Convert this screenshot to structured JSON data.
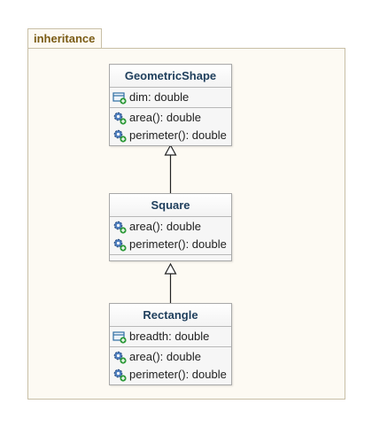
{
  "package": {
    "name": "inheritance"
  },
  "classes": {
    "geometric_shape": {
      "name": "GeometricShape",
      "attributes": [
        "dim: double"
      ],
      "operations": [
        "area(): double",
        "perimeter(): double"
      ]
    },
    "square": {
      "name": "Square",
      "attributes": [],
      "operations": [
        "area(): double",
        "perimeter(): double"
      ]
    },
    "rectangle": {
      "name": "Rectangle",
      "attributes": [
        "breadth: double"
      ],
      "operations": [
        "area(): double",
        "perimeter(): double"
      ]
    }
  },
  "relations": [
    {
      "type": "generalization",
      "from": "Square",
      "to": "GeometricShape"
    },
    {
      "type": "generalization",
      "from": "Rectangle",
      "to": "Square"
    }
  ],
  "icons": {
    "attribute": "field-icon",
    "operation": "method-icon",
    "accent": "#2e9a3a"
  }
}
